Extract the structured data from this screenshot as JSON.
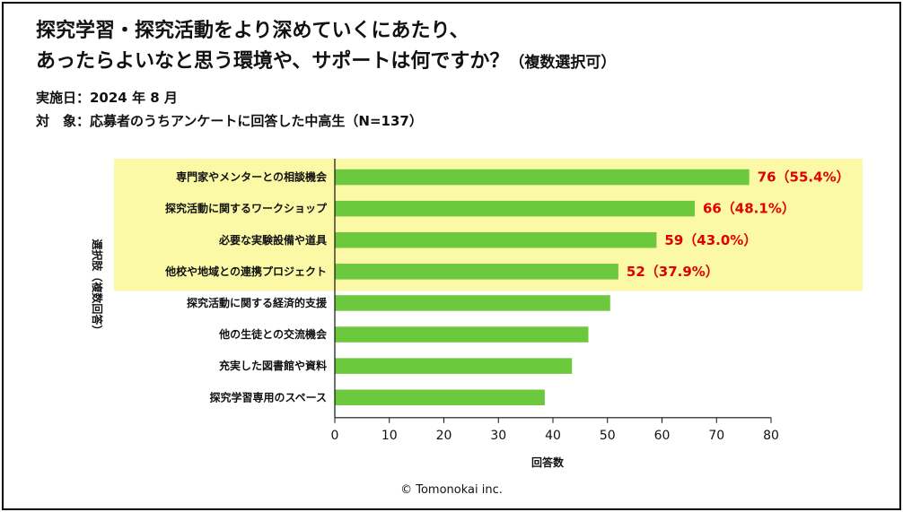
{
  "header": {
    "title_line1": "探究学習・探究活動をより深めていくにあたり、",
    "title_line2": "あったらよいなと思う環境や、サポートは何ですか？",
    "title_suffix": "（複数選択可）",
    "date_line": "実施日：2024 年 8 月",
    "target_line": "対　象：応募者のうちアンケートに回答した中高生（N=137）"
  },
  "credit": "© Tomonokai inc.",
  "colors": {
    "bar": "#6cc83c",
    "highlight": "#fbf9a5",
    "label": "#e00000"
  },
  "chart_data": {
    "type": "bar",
    "orientation": "horizontal",
    "categories": [
      "専門家やメンターとの相談機会",
      "探究活動に関するワークショップ",
      "必要な実験設備や道具",
      "他校や地域との連携プロジェクト",
      "探究活動に関する経済的支援",
      "他の生徒との交流機会",
      "充実した図書館や資料",
      "探究学習専用のスペース"
    ],
    "values": [
      76,
      66,
      59,
      52,
      50.5,
      46.5,
      43.5,
      38.5
    ],
    "data_labels": [
      "76（55.4%）",
      "66（48.1%）",
      "59（43.0%）",
      "52（37.9%）",
      null,
      null,
      null,
      null
    ],
    "highlighted_count": 4,
    "xlabel": "回答数",
    "ylabel": "選択肢（複数回答）",
    "xlim": [
      0,
      80
    ],
    "xticks": [
      0,
      10,
      20,
      30,
      40,
      50,
      60,
      70,
      80
    ]
  }
}
